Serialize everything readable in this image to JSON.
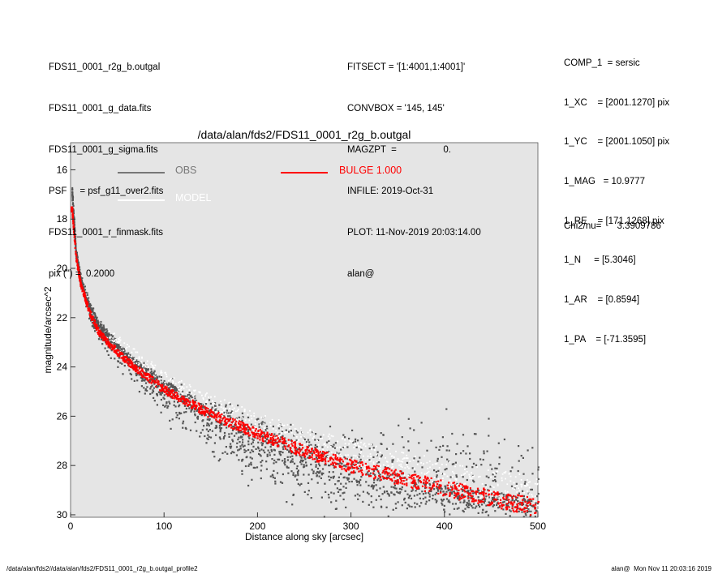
{
  "header_left": [
    "FDS11_0001_r2g_b.outgal",
    "FDS11_0001_g_data.fits",
    "FDS11_0001_g_sigma.fits",
    "PSF     = psf_g11_over2.fits",
    "FDS11_0001_r_finmask.fits",
    "pix (\") =  0.2000"
  ],
  "header_mid": [
    "FITSECT = '[1:4001,1:4001]'",
    "CONVBOX = '145, 145'",
    "MAGZPT  =                  0.",
    "INFILE: 2019-Oct-31",
    "PLOT: 11-Nov-2019 20:03:14.00",
    "alan@"
  ],
  "params": [
    "COMP_1  = sersic",
    "1_XC    = [2001.1270] pix",
    "1_YC    = [2001.1050] pix",
    "1_MAG   = 10.9777",
    "1_RE    = [171.1268] pix",
    "1_N     = [5.3046]",
    "1_AR    = [0.8594]",
    "1_PA    = [-71.3595]"
  ],
  "chi2": {
    "label": "Chi2/nu=",
    "value": "3.3909786"
  },
  "footer": {
    "left": "/data/alan/fds2//data/alan/fds2/FDS11_0001_r2g_b.outgal_profile2",
    "right": "alan@  Mon Nov 11 20:03:16 2019"
  },
  "colors": {
    "plot_bg": "#e5e5e5",
    "obs": "#555555",
    "obs_legend": "#777777",
    "model": "#ffffff",
    "bulge": "#ff0000"
  },
  "chart_data": {
    "type": "scatter",
    "title": "/data/alan/fds2/FDS11_0001_r2g_b.outgal",
    "xlabel": "Distance along sky [arcsec]",
    "ylabel": "magnitude/arcsec^2",
    "xlim": [
      0,
      500
    ],
    "ylim": [
      30.1,
      14.9
    ],
    "y_inverted": true,
    "grid": false,
    "xticks": [
      0,
      100,
      200,
      300,
      400,
      500
    ],
    "yticks": [
      16,
      18,
      20,
      22,
      24,
      26,
      28,
      30
    ],
    "legend": [
      {
        "name": "OBS",
        "color": "#777777"
      },
      {
        "name": "MODEL",
        "color": "#ffffff"
      },
      {
        "name": "BULGE  1.000",
        "color": "#ff0000"
      }
    ],
    "series": [
      {
        "name": "OBS",
        "x": [
          1,
          5,
          10,
          20,
          30,
          50,
          75,
          100,
          150,
          200,
          250,
          300,
          400,
          500
        ],
        "y": [
          16.9,
          19.3,
          20.4,
          21.6,
          22.3,
          23.2,
          24.0,
          24.7,
          25.8,
          26.7,
          27.3,
          27.9,
          28.7,
          29.4
        ],
        "y_scatter_faint": [
          16.9,
          19.5,
          20.7,
          22.2,
          23.0,
          24.0,
          25.0,
          26.0,
          27.5,
          28.6,
          29.4,
          30.0,
          30.2,
          30.2
        ],
        "y_scatter_bright": [
          16.9,
          19.2,
          20.3,
          21.5,
          22.2,
          23.0,
          23.7,
          24.4,
          25.3,
          25.9,
          26.2,
          26.4,
          26.6,
          26.8
        ]
      },
      {
        "name": "MODEL",
        "x": [
          1,
          5,
          10,
          20,
          30,
          50,
          75,
          100,
          150,
          200,
          250,
          300,
          400,
          500
        ],
        "y": [
          16.9,
          19.3,
          20.3,
          21.6,
          22.3,
          23.1,
          23.9,
          24.6,
          25.6,
          26.4,
          27.0,
          27.6,
          28.5,
          29.3
        ]
      },
      {
        "name": "BULGE  1.000",
        "x": [
          1,
          5,
          10,
          20,
          30,
          50,
          75,
          100,
          150,
          200,
          250,
          300,
          400,
          500
        ],
        "y": [
          17.6,
          19.5,
          20.6,
          21.8,
          22.6,
          23.4,
          24.2,
          24.9,
          25.9,
          26.7,
          27.4,
          28.0,
          28.9,
          29.7
        ]
      }
    ]
  }
}
